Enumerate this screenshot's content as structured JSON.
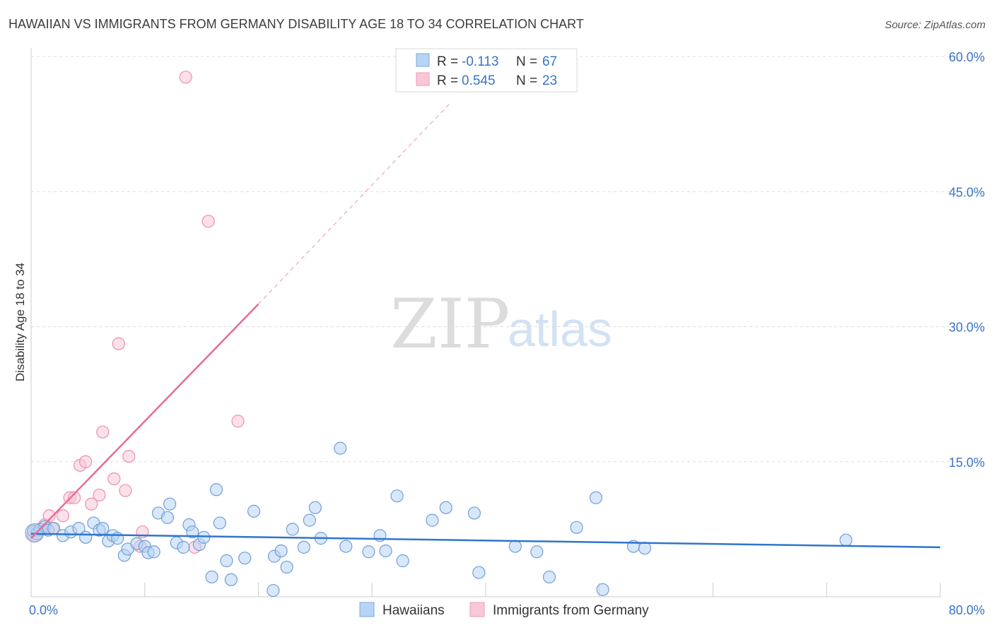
{
  "chart_data": {
    "type": "scatter",
    "title": "HAWAIIAN VS IMMIGRANTS FROM GERMANY DISABILITY AGE 18 TO 34 CORRELATION CHART",
    "source": "Source: ZipAtlas.com",
    "ylabel": "Disability Age 18 to 34",
    "xlabel": "",
    "xlim": [
      0,
      80
    ],
    "ylim": [
      0,
      60
    ],
    "x_tick_labels": [
      {
        "value": 0,
        "label": "0.0%"
      },
      {
        "value": 80,
        "label": "80.0%"
      }
    ],
    "y_tick_labels": [
      {
        "value": 15,
        "label": "15.0%"
      },
      {
        "value": 30,
        "label": "30.0%"
      },
      {
        "value": 45,
        "label": "45.0%"
      },
      {
        "value": 60,
        "label": "60.0%"
      }
    ],
    "watermark": {
      "zip": "ZIP",
      "atlas": "atlas"
    },
    "legend": {
      "r_label": "R =",
      "n_label": "N =",
      "entries": [
        {
          "name": "Hawaiians",
          "r": "-0.113",
          "n": "67",
          "fill": "#b8d4f4",
          "stroke": "#7aaae0"
        },
        {
          "name": "Immigrants from Germany",
          "r": "0.545",
          "n": "23",
          "fill": "#f9c8d6",
          "stroke": "#ee9ab4"
        }
      ]
    },
    "colors": {
      "value_text": "#3a74c4",
      "tick_text": "#3a74c4",
      "blue_line": "#2f75cc",
      "pink_line": "#e86b93",
      "grid": "#dddddd"
    },
    "series": [
      {
        "name": "Hawaiians",
        "color": "#b8d4f4",
        "stroke": "#6f9fd8",
        "trend": {
          "x0": 0,
          "y0": 7.0,
          "x1": 80,
          "y1": 5.5
        },
        "points": [
          [
            0.2,
            7.3
          ],
          [
            0.5,
            7.0
          ],
          [
            0.8,
            7.5
          ],
          [
            1.2,
            7.8
          ],
          [
            1.5,
            7.4
          ],
          [
            2.0,
            7.6
          ],
          [
            2.8,
            6.8
          ],
          [
            3.5,
            7.2
          ],
          [
            4.2,
            7.6
          ],
          [
            4.8,
            6.6
          ],
          [
            5.5,
            8.2
          ],
          [
            6.0,
            7.4
          ],
          [
            6.3,
            7.6
          ],
          [
            6.8,
            6.2
          ],
          [
            7.2,
            6.8
          ],
          [
            7.6,
            6.5
          ],
          [
            8.2,
            4.6
          ],
          [
            8.5,
            5.3
          ],
          [
            9.3,
            5.9
          ],
          [
            10.0,
            5.6
          ],
          [
            10.3,
            4.9
          ],
          [
            10.8,
            5.0
          ],
          [
            11.2,
            9.3
          ],
          [
            12.0,
            8.8
          ],
          [
            12.2,
            10.3
          ],
          [
            12.8,
            6.0
          ],
          [
            13.4,
            5.5
          ],
          [
            13.9,
            8.0
          ],
          [
            14.2,
            7.2
          ],
          [
            14.8,
            5.8
          ],
          [
            15.2,
            6.6
          ],
          [
            15.9,
            2.2
          ],
          [
            16.3,
            11.9
          ],
          [
            16.6,
            8.2
          ],
          [
            17.2,
            4.0
          ],
          [
            17.6,
            1.9
          ],
          [
            18.8,
            4.3
          ],
          [
            19.6,
            9.5
          ],
          [
            21.4,
            4.5
          ],
          [
            22.0,
            5.1
          ],
          [
            22.5,
            3.3
          ],
          [
            23.0,
            7.5
          ],
          [
            24.0,
            5.5
          ],
          [
            24.5,
            8.5
          ],
          [
            25.0,
            9.9
          ],
          [
            25.5,
            6.5
          ],
          [
            27.2,
            16.5
          ],
          [
            27.7,
            5.6
          ],
          [
            29.7,
            5.0
          ],
          [
            30.7,
            6.8
          ],
          [
            31.2,
            5.1
          ],
          [
            32.2,
            11.2
          ],
          [
            32.7,
            4.0
          ],
          [
            35.3,
            8.5
          ],
          [
            36.5,
            9.9
          ],
          [
            39.0,
            9.3
          ],
          [
            39.4,
            2.7
          ],
          [
            42.6,
            5.6
          ],
          [
            44.5,
            5.0
          ],
          [
            45.6,
            2.2
          ],
          [
            48.0,
            7.7
          ],
          [
            49.7,
            11.0
          ],
          [
            50.3,
            0.8
          ],
          [
            53.0,
            5.6
          ],
          [
            54.0,
            5.4
          ],
          [
            71.7,
            6.3
          ],
          [
            21.3,
            0.7
          ]
        ]
      },
      {
        "name": "Immigrants from Germany",
        "color": "#f9c8d6",
        "stroke": "#ec8fad",
        "trend": {
          "x0": 0,
          "y0": 6.5,
          "x1": 20,
          "y1": 32.5,
          "dash_to_x": 37,
          "dash_to_y": 55.0
        },
        "points": [
          [
            0.2,
            7.0
          ],
          [
            0.7,
            7.4
          ],
          [
            1.2,
            8.0
          ],
          [
            1.6,
            9.0
          ],
          [
            1.9,
            7.6
          ],
          [
            2.8,
            9.0
          ],
          [
            3.4,
            11.0
          ],
          [
            3.8,
            11.0
          ],
          [
            4.3,
            14.6
          ],
          [
            4.8,
            15.0
          ],
          [
            5.3,
            10.3
          ],
          [
            6.0,
            11.3
          ],
          [
            6.3,
            18.3
          ],
          [
            7.3,
            13.1
          ],
          [
            7.7,
            28.1
          ],
          [
            8.3,
            11.8
          ],
          [
            8.6,
            15.6
          ],
          [
            9.6,
            5.6
          ],
          [
            9.8,
            7.2
          ],
          [
            13.6,
            57.7
          ],
          [
            14.4,
            5.5
          ],
          [
            15.6,
            41.7
          ],
          [
            18.2,
            19.5
          ]
        ]
      }
    ]
  }
}
